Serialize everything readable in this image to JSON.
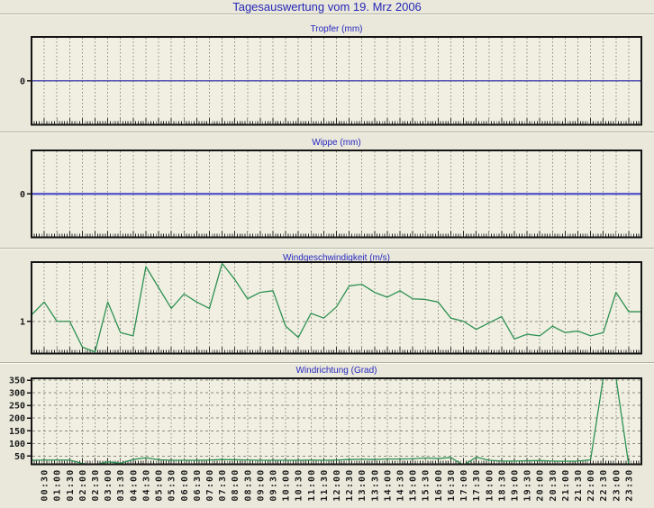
{
  "header": {
    "title": "Tagesauswertung vom 19. Mrz 2006"
  },
  "colors": {
    "page_bg": "#e9e8db",
    "plot_bg": "#f0efe2",
    "border": "#141414",
    "grid": "#8b8b80",
    "tick_text": "#1c1c1c",
    "title_text": "#2626b8",
    "panel1_line": "#3030a8",
    "panel2_line": "#5050c8",
    "green_line": "#2e9152"
  },
  "x_axis": {
    "start": "00:00",
    "step_minutes": 30,
    "ticklabels": [
      "00:30",
      "01:00",
      "01:30",
      "02:00",
      "02:30",
      "03:00",
      "03:30",
      "04:00",
      "04:30",
      "05:00",
      "05:30",
      "06:00",
      "06:30",
      "07:00",
      "07:30",
      "08:00",
      "08:30",
      "09:00",
      "09:30",
      "10:00",
      "10:30",
      "11:00",
      "11:30",
      "12:00",
      "12:30",
      "13:00",
      "13:30",
      "14:00",
      "14:30",
      "15:00",
      "15:30",
      "16:00",
      "16:30",
      "17:00",
      "17:30",
      "18:00",
      "18:30",
      "19:00",
      "19:30",
      "20:00",
      "20:30",
      "21:00",
      "21:30",
      "22:00",
      "22:30",
      "23:00",
      "23:30"
    ]
  },
  "chart_data": [
    {
      "type": "line",
      "title": "Tropfer (mm)",
      "ylim": [
        -1,
        1
      ],
      "yticks": [
        {
          "value": 0,
          "label": "0"
        }
      ],
      "series": [
        {
          "name": "Tropfer",
          "color_key": "panel1_line",
          "width": 1.2,
          "values": [
            0,
            0,
            0,
            0,
            0,
            0,
            0,
            0,
            0,
            0,
            0,
            0,
            0,
            0,
            0,
            0,
            0,
            0,
            0,
            0,
            0,
            0,
            0,
            0,
            0,
            0,
            0,
            0,
            0,
            0,
            0,
            0,
            0,
            0,
            0,
            0,
            0,
            0,
            0,
            0,
            0,
            0,
            0,
            0,
            0,
            0,
            0,
            0
          ]
        }
      ]
    },
    {
      "type": "line",
      "title": "Wippe (mm)",
      "ylim": [
        -1,
        1
      ],
      "yticks": [
        {
          "value": 0,
          "label": "0"
        }
      ],
      "series": [
        {
          "name": "Wippe",
          "color_key": "panel2_line",
          "width": 2.2,
          "values": [
            0,
            0,
            0,
            0,
            0,
            0,
            0,
            0,
            0,
            0,
            0,
            0,
            0,
            0,
            0,
            0,
            0,
            0,
            0,
            0,
            0,
            0,
            0,
            0,
            0,
            0,
            0,
            0,
            0,
            0,
            0,
            0,
            0,
            0,
            0,
            0,
            0,
            0,
            0,
            0,
            0,
            0,
            0,
            0,
            0,
            0,
            0,
            0
          ]
        }
      ]
    },
    {
      "type": "line",
      "title": "Windgeschwindigkeit (m/s)",
      "ylim": [
        0,
        2.84
      ],
      "yticks": [
        {
          "value": 1,
          "label": "1"
        }
      ],
      "series": [
        {
          "name": "Windgeschwindigkeit",
          "color_key": "green_line",
          "width": 1.3,
          "values": [
            1.2,
            1.6,
            1.0,
            1.0,
            0.2,
            0.05,
            1.6,
            0.65,
            0.55,
            2.7,
            2.05,
            1.4,
            1.85,
            1.6,
            1.4,
            2.8,
            2.3,
            1.7,
            1.9,
            1.95,
            0.85,
            0.5,
            1.25,
            1.1,
            1.45,
            2.1,
            2.15,
            1.9,
            1.75,
            1.95,
            1.7,
            1.68,
            1.6,
            1.1,
            1.0,
            0.75,
            0.95,
            1.15,
            0.45,
            0.6,
            0.55,
            0.85,
            0.65,
            0.7,
            0.55,
            0.65,
            1.9,
            1.3
          ]
        }
      ]
    },
    {
      "type": "line",
      "title": "Windrichtung (Grad)",
      "ylim": [
        17,
        358
      ],
      "show_x_labels": true,
      "yticks": [
        {
          "value": 350,
          "label": "350"
        },
        {
          "value": 300,
          "label": "300"
        },
        {
          "value": 250,
          "label": "250"
        },
        {
          "value": 200,
          "label": "200"
        },
        {
          "value": 150,
          "label": "150"
        },
        {
          "value": 100,
          "label": "100"
        },
        {
          "value": 50,
          "label": "50"
        }
      ],
      "series": [
        {
          "name": "Windrichtung",
          "color_key": "green_line",
          "width": 1.3,
          "values": [
            33,
            34,
            34,
            34,
            20,
            15,
            27,
            21,
            36,
            43,
            35,
            33,
            33,
            33,
            34,
            36,
            35,
            34,
            33,
            33,
            33,
            33,
            34,
            33,
            34,
            36,
            37,
            36,
            38,
            38,
            39,
            42,
            40,
            44,
            13,
            45,
            33,
            30,
            30,
            31,
            32,
            30,
            29,
            30,
            35,
            360,
            360,
            15
          ]
        }
      ]
    }
  ]
}
